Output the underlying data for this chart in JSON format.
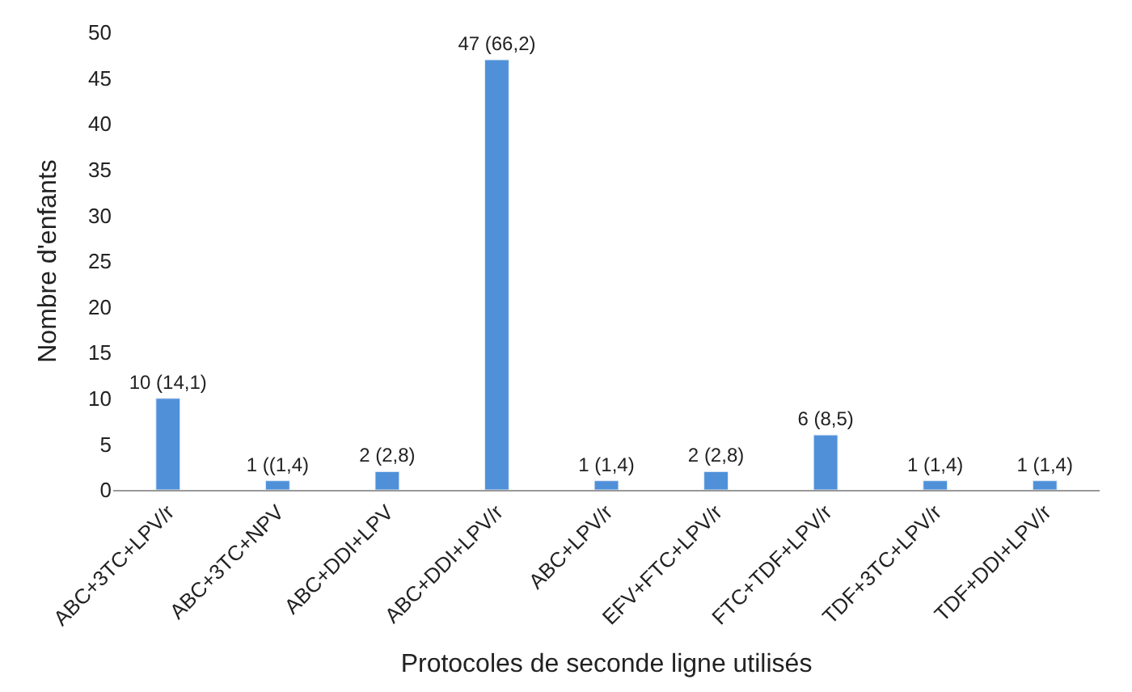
{
  "chart_data": {
    "type": "bar",
    "xlabel": "Protocoles de seconde ligne utilisés",
    "ylabel": "Nombre d'enfants",
    "categories": [
      "ABC+3TC+LPV/r",
      "ABC+3TC+NPV",
      "ABC+DDI+LPV",
      "ABC+DDI+LPV/r",
      "ABC+LPV/r",
      "EFV+FTC+LPV/r",
      "FTC+TDF+LPV/r",
      "TDF+3TC+LPV/r",
      "TDF+DDI+LPV/r"
    ],
    "values": [
      10,
      1,
      2,
      47,
      1,
      2,
      6,
      1,
      1
    ],
    "value_labels": [
      "10 (14,1)",
      "1 ((1,4)",
      "2 (2,8)",
      "47 (66,2)",
      "1 (1,4)",
      "2 (2,8)",
      "6 (8,5)",
      "1 (1,4)",
      "1 (1,4)"
    ],
    "color": "#4f90d9",
    "ylim": [
      0,
      50
    ],
    "yticks": [
      0,
      5,
      10,
      15,
      20,
      25,
      30,
      35,
      40,
      45,
      50
    ],
    "legend": false
  }
}
